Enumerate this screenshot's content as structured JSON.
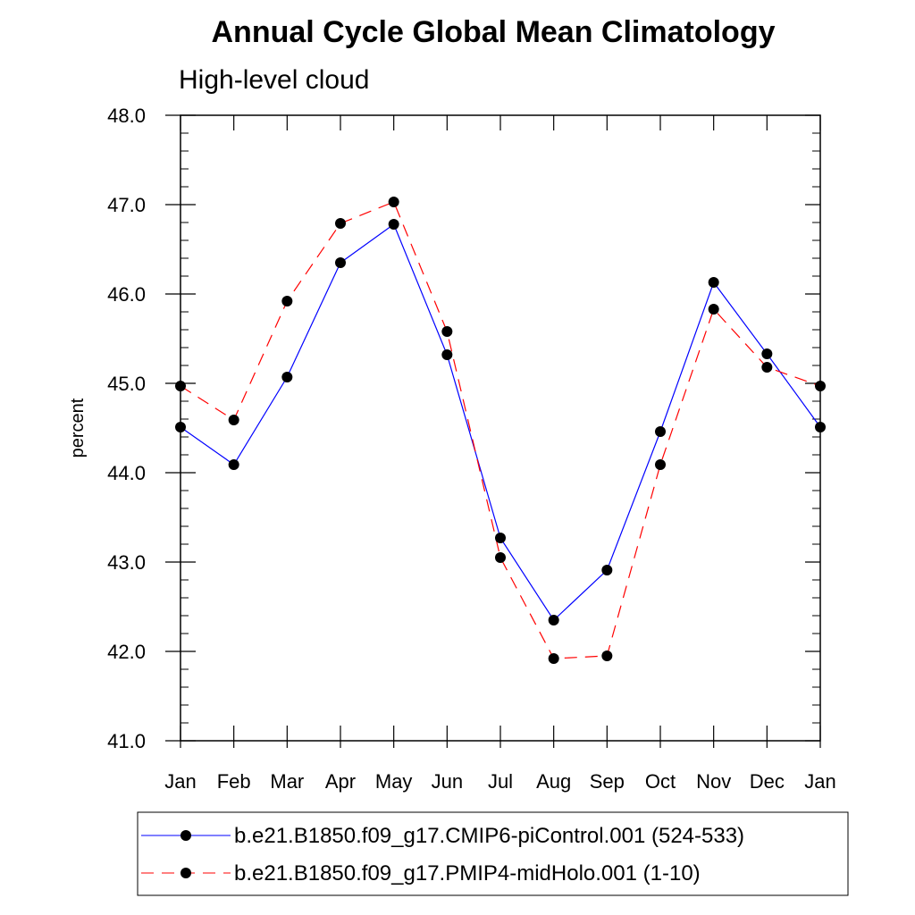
{
  "chart_data": {
    "type": "line",
    "title": "Annual Cycle Global Mean Climatology",
    "subtitle": "High-level cloud",
    "xlabel": "",
    "ylabel": "percent",
    "categories": [
      "Jan",
      "Feb",
      "Mar",
      "Apr",
      "May",
      "Jun",
      "Jul",
      "Aug",
      "Sep",
      "Oct",
      "Nov",
      "Dec",
      "Jan"
    ],
    "ylim": [
      41.0,
      48.0
    ],
    "yticks": [
      "41.0",
      "42.0",
      "43.0",
      "44.0",
      "45.0",
      "46.0",
      "47.0",
      "48.0"
    ],
    "grid": false,
    "legend_position": "bottom",
    "series": [
      {
        "name": "b.e21.B1850.f09_g17.CMIP6-piControl.001 (524-533)",
        "color": "#0000ff",
        "line_style": "solid",
        "marker": "circle",
        "values": [
          44.51,
          44.09,
          45.07,
          46.35,
          46.78,
          45.32,
          43.27,
          42.35,
          42.91,
          44.46,
          46.13,
          45.33,
          44.51
        ]
      },
      {
        "name": "b.e21.B1850.f09_g17.PMIP4-midHolo.001 (1-10)",
        "color": "#ff0000",
        "line_style": "dashed",
        "marker": "circle",
        "values": [
          44.97,
          44.59,
          45.92,
          46.79,
          47.03,
          45.58,
          43.05,
          41.92,
          41.95,
          44.09,
          45.83,
          45.18,
          44.97
        ]
      }
    ]
  }
}
